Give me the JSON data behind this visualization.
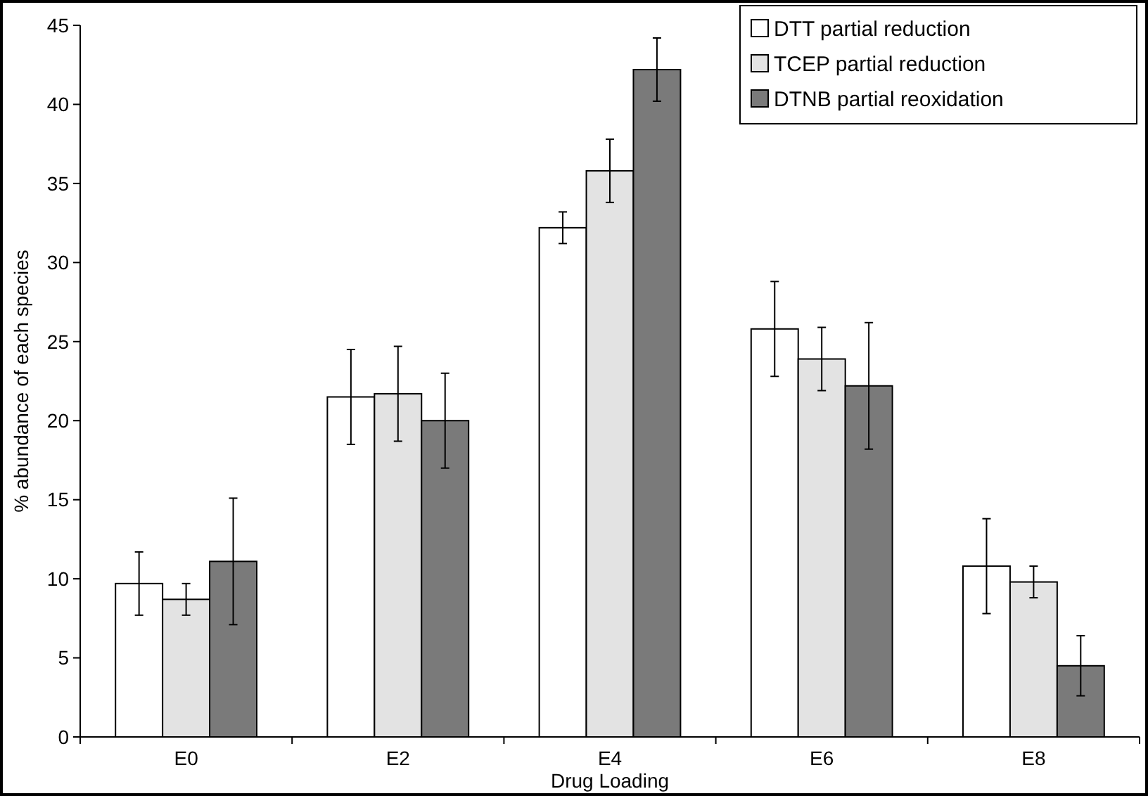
{
  "chart_data": {
    "type": "bar",
    "xlabel": "Drug Loading",
    "ylabel": "% abundance of each species",
    "categories": [
      "E0",
      "E2",
      "E4",
      "E6",
      "E8"
    ],
    "series": [
      {
        "name": "DTT partial reduction",
        "color": "#ffffff",
        "values": [
          9.7,
          21.5,
          32.2,
          25.8,
          10.8
        ],
        "errors": [
          2,
          3,
          1,
          3,
          3
        ]
      },
      {
        "name": "TCEP partial reduction",
        "color": "#e3e3e3",
        "values": [
          8.7,
          21.7,
          35.8,
          23.9,
          9.8
        ],
        "errors": [
          1,
          3,
          2,
          2,
          1
        ]
      },
      {
        "name": "DTNB partial reoxidation",
        "color": "#7a7a7a",
        "values": [
          11.1,
          20,
          42.2,
          22.2,
          4.5
        ],
        "errors": [
          4,
          3,
          2,
          4,
          1.9
        ]
      }
    ],
    "ylim": [
      0,
      45
    ],
    "yticks": [
      0,
      5,
      10,
      15,
      20,
      25,
      30,
      35,
      40,
      45
    ],
    "grid": false,
    "legend": "top right"
  }
}
